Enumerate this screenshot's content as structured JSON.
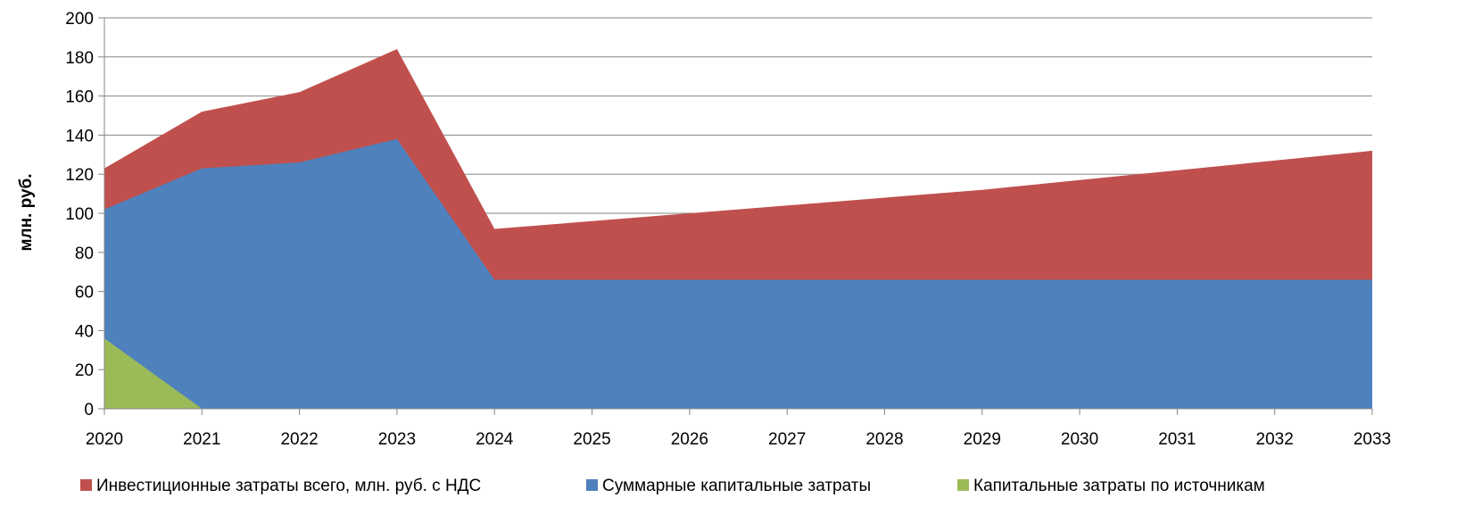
{
  "chart_data": {
    "type": "area",
    "title": "",
    "xlabel": "",
    "ylabel": "млн. руб.",
    "x": [
      "2020",
      "2021",
      "2022",
      "2023",
      "2024",
      "2025",
      "2026",
      "2027",
      "2028",
      "2029",
      "2030",
      "2031",
      "2032",
      "2033"
    ],
    "ylim": [
      0,
      200
    ],
    "yticks": [
      0,
      20,
      40,
      60,
      80,
      100,
      120,
      140,
      160,
      180,
      200
    ],
    "grid": true,
    "legend_position": "bottom",
    "series": [
      {
        "name": "Инвестиционные затраты всего, млн. руб. с НДС",
        "color": "#C0504D",
        "values": [
          123,
          152,
          162,
          184,
          92,
          96,
          100,
          104,
          108,
          112,
          117,
          122,
          127,
          132
        ]
      },
      {
        "name": "Суммарные капитальные затраты",
        "color": "#4F81BD",
        "values": [
          102,
          123,
          126,
          138,
          66,
          66,
          66,
          66,
          66,
          66,
          66,
          66,
          66,
          66
        ]
      },
      {
        "name": "Капитальные затраты по источникам",
        "color": "#9BBB59",
        "values": [
          36,
          0,
          0,
          0,
          0,
          0,
          0,
          0,
          0,
          0,
          0,
          0,
          0,
          0
        ]
      }
    ]
  }
}
